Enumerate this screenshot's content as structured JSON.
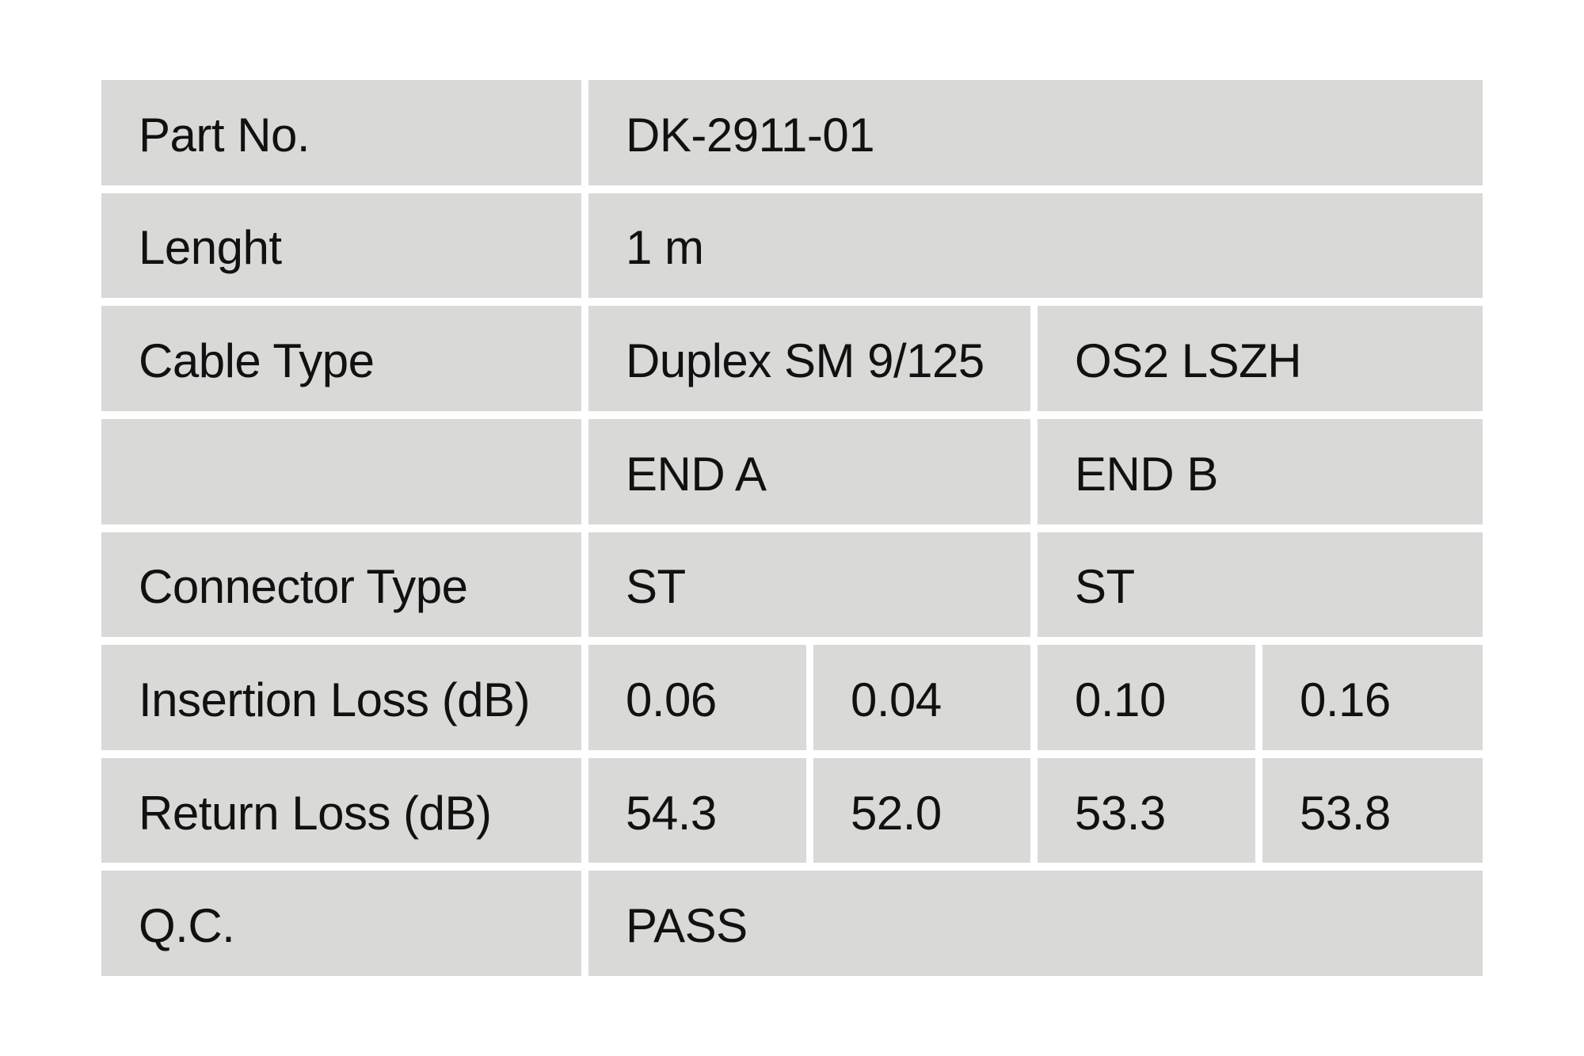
{
  "page": {
    "background_color": "#ffffff"
  },
  "table": {
    "cell_background": "#d9d9d7",
    "text_color": "#111111",
    "rows": [
      {
        "label": "Part No.",
        "values": [
          {
            "text": "DK-2911-01",
            "span": 4
          }
        ]
      },
      {
        "label": "Lenght",
        "values": [
          {
            "text": "1 m",
            "span": 4
          }
        ]
      },
      {
        "label": "Cable Type",
        "values": [
          {
            "text": "Duplex SM 9/125",
            "span": 2
          },
          {
            "text": "OS2 LSZH",
            "span": 2
          }
        ]
      },
      {
        "label": "",
        "values": [
          {
            "text": "END A",
            "span": 2
          },
          {
            "text": "END B",
            "span": 2
          }
        ]
      },
      {
        "label": "Connector Type",
        "values": [
          {
            "text": "ST",
            "span": 2
          },
          {
            "text": "ST",
            "span": 2
          }
        ]
      },
      {
        "label": "Insertion Loss (dB)",
        "values": [
          {
            "text": "0.06",
            "span": 1
          },
          {
            "text": "0.04",
            "span": 1
          },
          {
            "text": "0.10",
            "span": 1
          },
          {
            "text": "0.16",
            "span": 1
          }
        ]
      },
      {
        "label": "Return Loss (dB)",
        "values": [
          {
            "text": "54.3",
            "span": 1
          },
          {
            "text": "52.0",
            "span": 1
          },
          {
            "text": "53.3",
            "span": 1
          },
          {
            "text": "53.8",
            "span": 1
          }
        ]
      },
      {
        "label": "Q.C.",
        "values": [
          {
            "text": "PASS",
            "span": 4
          }
        ]
      }
    ]
  },
  "chart_data": {
    "type": "table",
    "title": "",
    "rows": [
      [
        "Part No.",
        "DK-2911-01"
      ],
      [
        "Lenght",
        "1 m"
      ],
      [
        "Cable Type",
        "Duplex SM 9/125",
        "OS2 LSZH"
      ],
      [
        "",
        "END A",
        "END B"
      ],
      [
        "Connector Type",
        "ST",
        "ST"
      ],
      [
        "Insertion Loss (dB)",
        "0.06",
        "0.04",
        "0.10",
        "0.16"
      ],
      [
        "Return Loss (dB)",
        "54.3",
        "52.0",
        "53.3",
        "53.8"
      ],
      [
        "Q.C.",
        "PASS"
      ]
    ],
    "part_no": "DK-2911-01",
    "length": "1 m",
    "cable_type": [
      "Duplex SM 9/125",
      "OS2 LSZH"
    ],
    "connector_type": {
      "end_a": "ST",
      "end_b": "ST"
    },
    "insertion_loss_dB": {
      "end_a": [
        0.06,
        0.04
      ],
      "end_b": [
        0.1,
        0.16
      ]
    },
    "return_loss_dB": {
      "end_a": [
        54.3,
        52.0
      ],
      "end_b": [
        53.3,
        53.8
      ]
    },
    "qc": "PASS"
  }
}
